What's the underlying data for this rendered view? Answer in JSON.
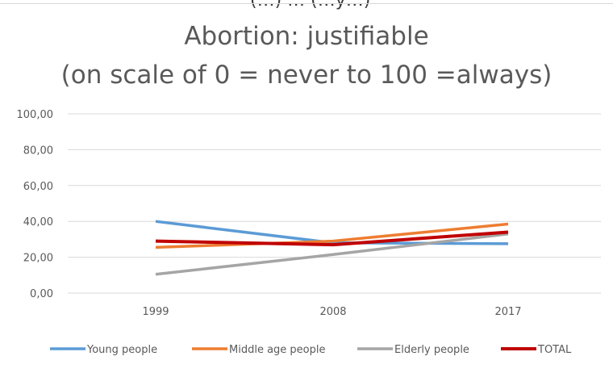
{
  "header_cutoff_text": "(…) … (…y…)",
  "chart_data": {
    "type": "line",
    "title_line1": "Abortion: justifiable",
    "title_line2": "(on scale of 0 = never to 100 =always)",
    "categories": [
      "1999",
      "2008",
      "2017"
    ],
    "y_ticks": [
      "0,00",
      "20,00",
      "40,00",
      "60,00",
      "80,00",
      "100,00"
    ],
    "ylim": [
      0,
      100
    ],
    "grid": true,
    "legend_position": "bottom",
    "series": [
      {
        "name": "Young people",
        "values": [
          40,
          28,
          27.5
        ],
        "color": "#5b9bd5"
      },
      {
        "name": "Middle age people",
        "values": [
          25.5,
          29,
          38.5
        ],
        "color": "#ed7d31"
      },
      {
        "name": "Elderly people",
        "values": [
          10.5,
          21.5,
          33
        ],
        "color": "#a5a5a5"
      },
      {
        "name": "TOTAL",
        "values": [
          29,
          27,
          34
        ],
        "color": "#c00000"
      }
    ]
  }
}
